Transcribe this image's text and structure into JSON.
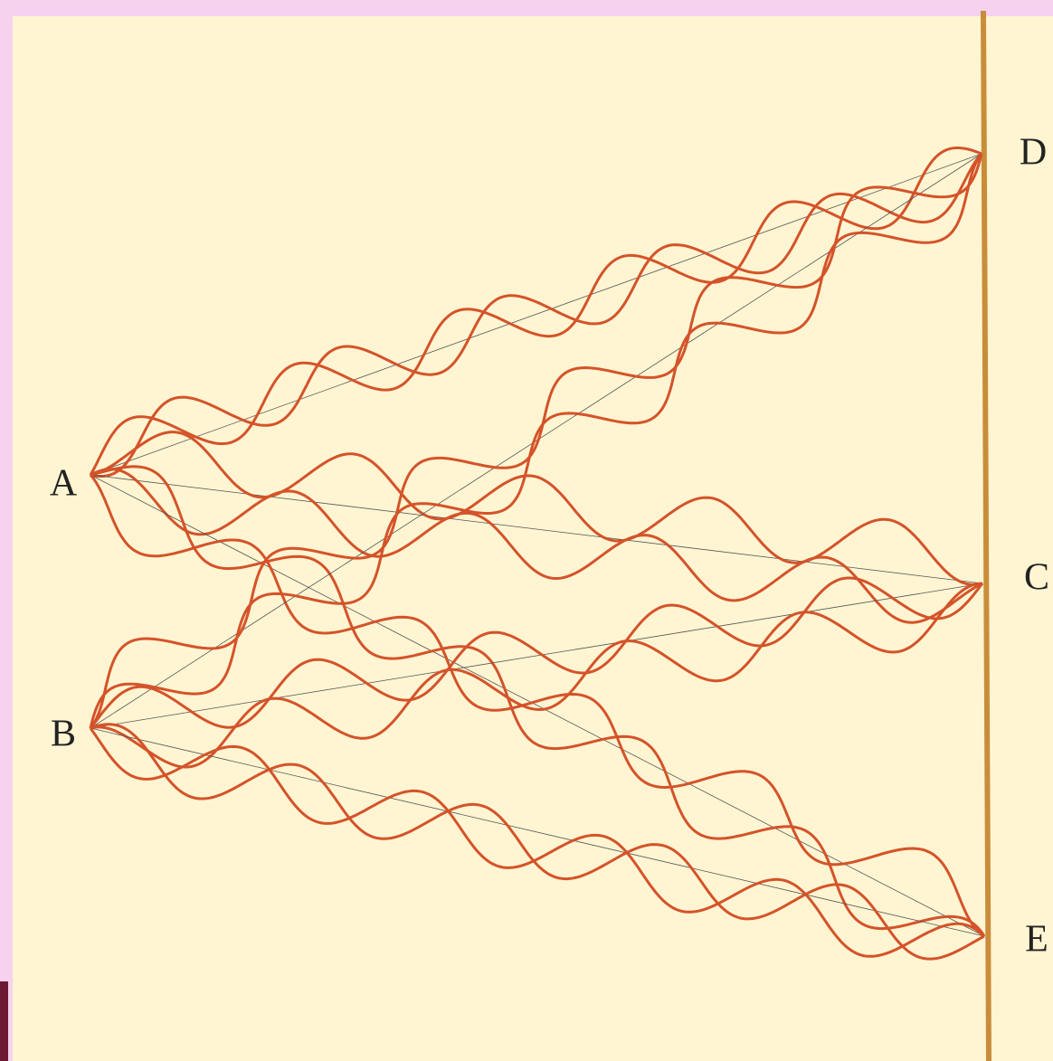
{
  "points": [
    "A",
    "B",
    "C",
    "D",
    "E"
  ]
}
